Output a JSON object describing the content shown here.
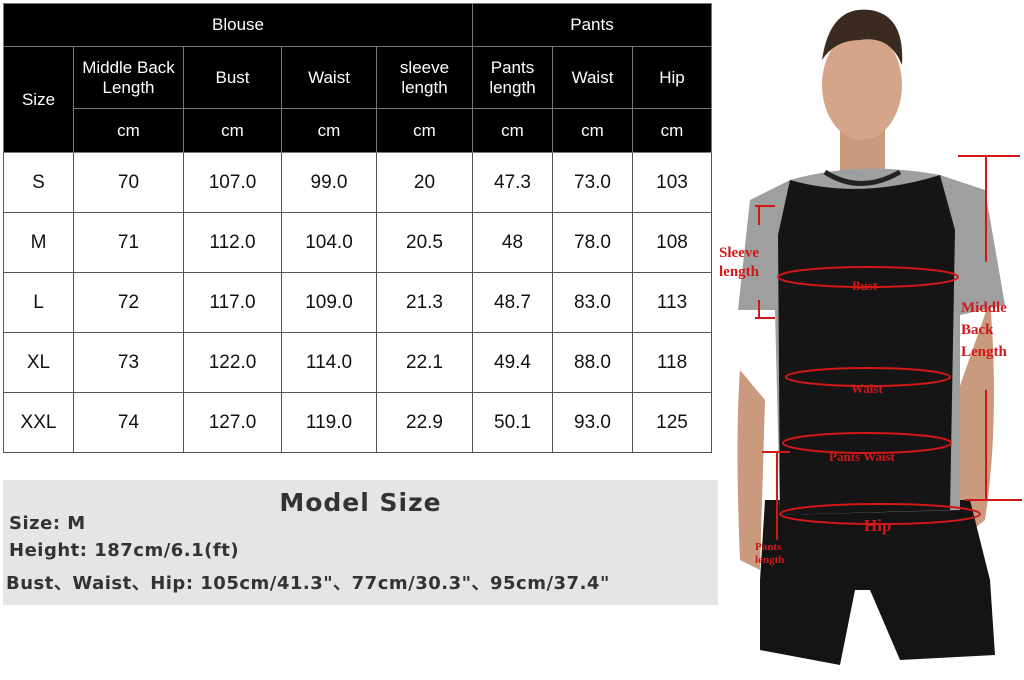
{
  "table": {
    "groups": {
      "blouse": "Blouse",
      "pants": "Pants"
    },
    "size_header": "Size",
    "columns": [
      "Middle Back Length",
      "Bust",
      "Waist",
      "sleeve length",
      "Pants length",
      "Waist",
      "Hip"
    ],
    "unit": "cm",
    "rows": [
      [
        "S",
        "70",
        "107.0",
        "99.0",
        "20",
        "47.3",
        "73.0",
        "103"
      ],
      [
        "M",
        "71",
        "112.0",
        "104.0",
        "20.5",
        "48",
        "78.0",
        "108"
      ],
      [
        "L",
        "72",
        "117.0",
        "109.0",
        "21.3",
        "48.7",
        "83.0",
        "113"
      ],
      [
        "XL",
        "73",
        "122.0",
        "114.0",
        "22.1",
        "49.4",
        "88.0",
        "118"
      ],
      [
        "XXL",
        "74",
        "127.0",
        "119.0",
        "22.9",
        "50.1",
        "93.0",
        "125"
      ]
    ]
  },
  "model": {
    "title": "Model Size",
    "size": "Size:  M",
    "height": "Height: 187cm/6.1(ft)",
    "measurements": "Bust、Waist、Hip:  105cm/41.3\"、77cm/30.3\"、95cm/37.4\""
  },
  "figure": {
    "labels": {
      "sleeve": "Sleeve",
      "sleeve2": "length",
      "bust": "Bust",
      "middle": "Middle",
      "back": "Back",
      "length": "Length",
      "waist": "Waist",
      "pants_waist": "Pants Waist",
      "hip": "Hip",
      "pants": "Pants",
      "pants2": "length"
    },
    "accent": "#d01818"
  }
}
